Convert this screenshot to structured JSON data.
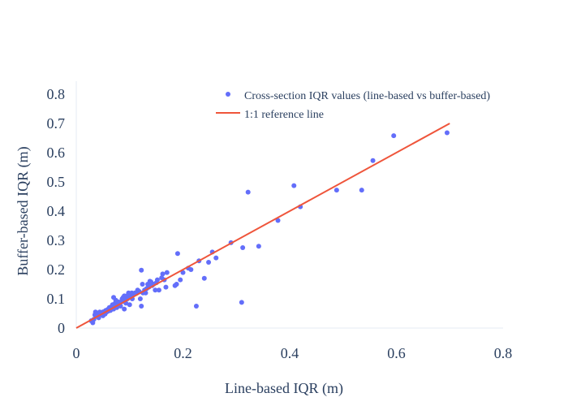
{
  "chart_data": {
    "type": "scatter",
    "xlabel": "Line-based IQR (m)",
    "ylabel": "Buffer-based IQR (m)",
    "xlim": [
      0,
      0.8
    ],
    "ylim": [
      0,
      0.8
    ],
    "x_ticks": [
      0,
      0.2,
      0.4,
      0.6,
      0.8
    ],
    "y_ticks": [
      0,
      0.1,
      0.2,
      0.3,
      0.4,
      0.5,
      0.6,
      0.7,
      0.8
    ],
    "x_tick_labels": [
      "0",
      "0.2",
      "0.4",
      "0.6",
      "0.8"
    ],
    "y_tick_labels": [
      "0",
      "0.1",
      "0.2",
      "0.3",
      "0.4",
      "0.5",
      "0.6",
      "0.7",
      "0.8"
    ],
    "grid": false,
    "legend_position": "top-right",
    "series": [
      {
        "name": "Cross-section IQR values (line-based vs buffer-based)",
        "type": "scatter",
        "color": "#636efa",
        "x": [
          0.028,
          0.031,
          0.033,
          0.035,
          0.036,
          0.038,
          0.04,
          0.042,
          0.044,
          0.046,
          0.048,
          0.05,
          0.05,
          0.052,
          0.054,
          0.055,
          0.057,
          0.058,
          0.06,
          0.061,
          0.062,
          0.064,
          0.065,
          0.066,
          0.067,
          0.068,
          0.069,
          0.07,
          0.07,
          0.072,
          0.073,
          0.074,
          0.075,
          0.076,
          0.078,
          0.08,
          0.082,
          0.083,
          0.085,
          0.086,
          0.088,
          0.09,
          0.09,
          0.092,
          0.093,
          0.095,
          0.096,
          0.098,
          0.1,
          0.1,
          0.102,
          0.104,
          0.105,
          0.108,
          0.11,
          0.112,
          0.115,
          0.118,
          0.12,
          0.122,
          0.124,
          0.125,
          0.128,
          0.13,
          0.132,
          0.134,
          0.136,
          0.138,
          0.14,
          0.142,
          0.145,
          0.148,
          0.15,
          0.152,
          0.155,
          0.16,
          0.162,
          0.165,
          0.168,
          0.17,
          0.185,
          0.188,
          0.19,
          0.195,
          0.2,
          0.21,
          0.215,
          0.225,
          0.23,
          0.24,
          0.248,
          0.255,
          0.262,
          0.29,
          0.31,
          0.312,
          0.322,
          0.342,
          0.378,
          0.408,
          0.42,
          0.488,
          0.535,
          0.556,
          0.595,
          0.695,
          0.122,
          0.085,
          0.115,
          0.07,
          0.06,
          0.05,
          0.045,
          0.09,
          0.1,
          0.035
        ],
        "y": [
          0.025,
          0.018,
          0.03,
          0.045,
          0.055,
          0.04,
          0.05,
          0.035,
          0.055,
          0.048,
          0.052,
          0.042,
          0.055,
          0.05,
          0.048,
          0.06,
          0.055,
          0.062,
          0.058,
          0.065,
          0.07,
          0.06,
          0.072,
          0.068,
          0.075,
          0.08,
          0.07,
          0.065,
          0.105,
          0.078,
          0.085,
          0.095,
          0.08,
          0.07,
          0.09,
          0.085,
          0.088,
          0.075,
          0.092,
          0.1,
          0.105,
          0.065,
          0.11,
          0.098,
          0.085,
          0.11,
          0.1,
          0.12,
          0.08,
          0.115,
          0.105,
          0.12,
          0.1,
          0.115,
          0.12,
          0.118,
          0.125,
          0.125,
          0.1,
          0.075,
          0.15,
          0.12,
          0.13,
          0.12,
          0.135,
          0.15,
          0.14,
          0.16,
          0.158,
          0.145,
          0.15,
          0.13,
          0.155,
          0.165,
          0.13,
          0.172,
          0.185,
          0.165,
          0.14,
          0.19,
          0.145,
          0.15,
          0.255,
          0.165,
          0.19,
          0.205,
          0.2,
          0.075,
          0.23,
          0.17,
          0.225,
          0.26,
          0.24,
          0.292,
          0.088,
          0.275,
          0.465,
          0.28,
          0.368,
          0.487,
          0.415,
          0.472,
          0.472,
          0.573,
          0.658,
          0.668,
          0.198,
          0.09,
          0.13,
          0.08,
          0.065,
          0.055,
          0.05,
          0.095,
          0.105,
          0.045
        ]
      },
      {
        "name": "1:1 reference line",
        "type": "line",
        "color": "#ef553b",
        "x": [
          0,
          0.7
        ],
        "y": [
          0,
          0.7
        ]
      }
    ]
  }
}
